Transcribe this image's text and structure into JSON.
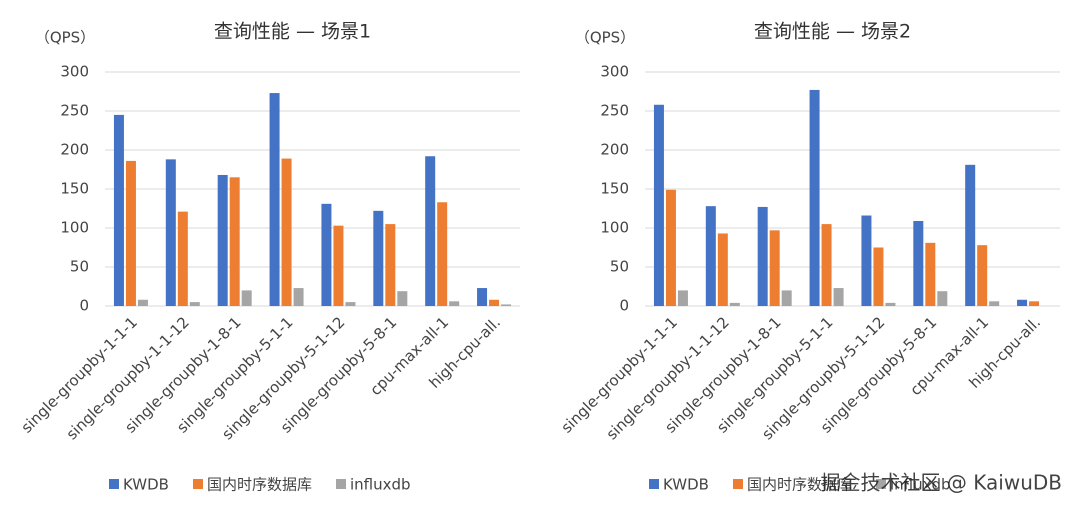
{
  "chart_data": [
    {
      "type": "bar",
      "title": "查询性能 — 场景1",
      "ylabel": "（QPS）",
      "categories": [
        "single-groupby-1-1-1",
        "single-groupby-1-1-12",
        "single-groupby-1-8-1",
        "single-groupby-5-1-1",
        "single-groupby-5-1-12",
        "single-groupby-5-8-1",
        "cpu-max-all-1",
        "high-cpu-all."
      ],
      "series": [
        {
          "name": "KWDB",
          "color": "#4472c4",
          "values": [
            245,
            188,
            168,
            273,
            131,
            122,
            192,
            23
          ]
        },
        {
          "name": "国内时序数据库",
          "color": "#ed7d31",
          "values": [
            186,
            121,
            165,
            189,
            103,
            105,
            133,
            8
          ]
        },
        {
          "name": "influxdb",
          "color": "#a5a5a5",
          "values": [
            8,
            5,
            20,
            23,
            5,
            19,
            6,
            2
          ]
        }
      ],
      "ylim": [
        0,
        300
      ],
      "yticks": [
        0,
        50,
        100,
        150,
        200,
        250,
        300
      ],
      "grid": true,
      "legend": "bottom"
    },
    {
      "type": "bar",
      "title": "查询性能 — 场景2",
      "ylabel": "（QPS）",
      "categories": [
        "single-groupby-1-1-1",
        "single-groupby-1-1-12",
        "single-groupby-1-8-1",
        "single-groupby-5-1-1",
        "single-groupby-5-1-12",
        "single-groupby-5-8-1",
        "cpu-max-all-1",
        "high-cpu-all."
      ],
      "series": [
        {
          "name": "KWDB",
          "color": "#4472c4",
          "values": [
            258,
            128,
            127,
            277,
            116,
            109,
            181,
            8
          ]
        },
        {
          "name": "国内时序数据库",
          "color": "#ed7d31",
          "values": [
            149,
            93,
            97,
            105,
            75,
            81,
            78,
            6
          ]
        },
        {
          "name": "influxdb",
          "color": "#a5a5a5",
          "values": [
            20,
            4,
            20,
            23,
            4,
            19,
            6,
            0
          ]
        }
      ],
      "ylim": [
        0,
        300
      ],
      "yticks": [
        0,
        50,
        100,
        150,
        200,
        250,
        300
      ],
      "grid": true,
      "legend": "bottom"
    }
  ],
  "watermark": "掘金技术社区 @ KaiwuDB"
}
